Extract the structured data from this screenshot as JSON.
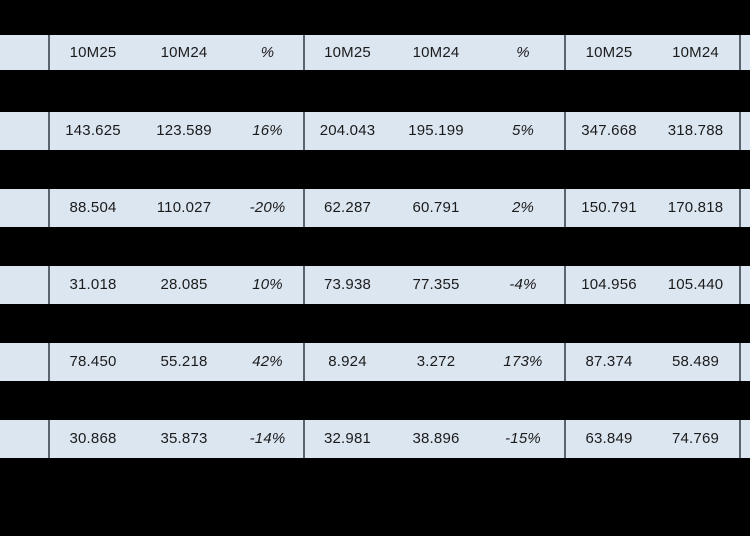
{
  "colors": {
    "background": "#000000",
    "row_fill": "#dce6f1",
    "divider": "#5a6470",
    "text": "#1b1b1b"
  },
  "chart_data": {
    "type": "table",
    "columns": [
      "10M25",
      "10M24",
      "%",
      "10M25",
      "10M24",
      "%",
      "10M25",
      "10M24"
    ],
    "column_groups": [
      {
        "columns": [
          "10M25",
          "10M24",
          "%"
        ]
      },
      {
        "columns": [
          "10M25",
          "10M24",
          "%"
        ]
      },
      {
        "columns": [
          "10M25",
          "10M24"
        ]
      }
    ],
    "rows": [
      [
        "143.625",
        "123.589",
        "16%",
        "204.043",
        "195.199",
        "5%",
        "347.668",
        "318.788"
      ],
      [
        "88.504",
        "110.027",
        "-20%",
        "62.287",
        "60.791",
        "2%",
        "150.791",
        "170.818"
      ],
      [
        "31.018",
        "28.085",
        "10%",
        "73.938",
        "77.355",
        "-4%",
        "104.956",
        "105.440"
      ],
      [
        "78.450",
        "55.218",
        "42%",
        "8.924",
        "3.272",
        "173%",
        "87.374",
        "58.489"
      ],
      [
        "30.868",
        "35.873",
        "-14%",
        "32.981",
        "38.896",
        "-15%",
        "63.849",
        "74.769"
      ]
    ],
    "layout": {
      "grid": "off",
      "row_label_column_blank": true,
      "separator_rows_blacked_out": true,
      "rightmost_column_cut_off": true
    }
  }
}
